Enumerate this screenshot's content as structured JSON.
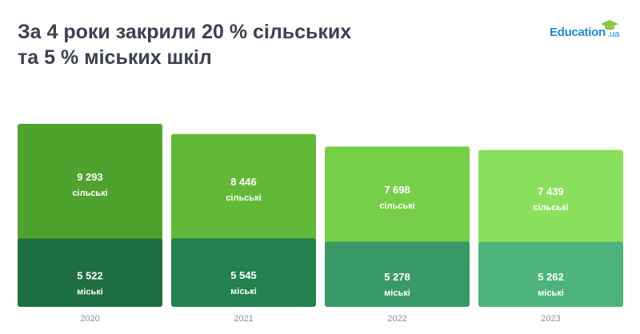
{
  "header": {
    "title_line1": "За 4 роки закрили 20 % сільських",
    "title_line2": "та 5 % міських шкіл"
  },
  "logo": {
    "main_text": "Education",
    "tld_text": ".ua",
    "cap_icon": "graduation-cap-icon",
    "text_color": "#1e88d8",
    "cap_color": "#8dc63f"
  },
  "chart_data": {
    "type": "bar",
    "stacked": true,
    "categories": [
      "2020",
      "2021",
      "2022",
      "2023"
    ],
    "series": [
      {
        "name": "міські",
        "values": [
          5522,
          5545,
          5278,
          5262
        ],
        "labels": [
          "5 522",
          "5 545",
          "5 278",
          "5 262"
        ],
        "colors": [
          "#1d6e41",
          "#22814e",
          "#3a9a67",
          "#4cb47c"
        ]
      },
      {
        "name": "сільські",
        "values": [
          9293,
          8446,
          7698,
          7439
        ],
        "labels": [
          "9 293",
          "8 446",
          "7 698",
          "7 439"
        ],
        "colors": [
          "#4fa22d",
          "#63b937",
          "#77cf49",
          "#8be05e"
        ]
      }
    ],
    "title": "",
    "xlabel": "",
    "ylabel": "",
    "grid": false,
    "legend": "none"
  }
}
